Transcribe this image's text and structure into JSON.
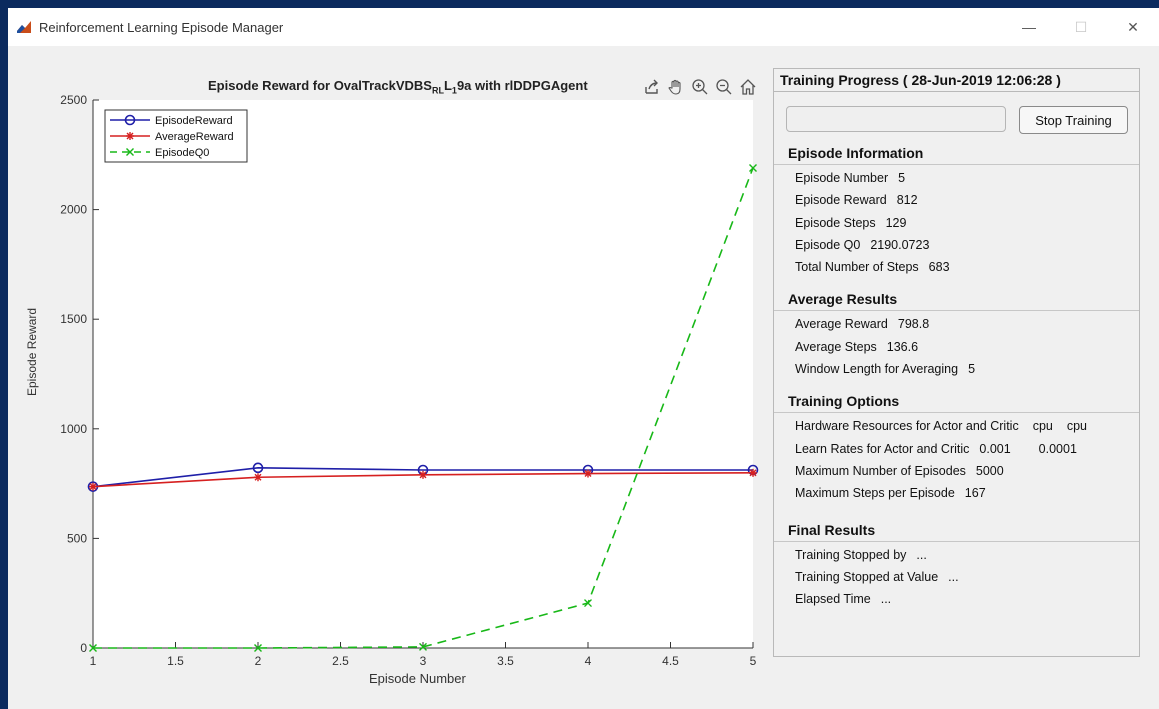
{
  "window": {
    "title": "Reinforcement Learning Episode Manager",
    "controls": {
      "minimize": "—",
      "maximize": "☐",
      "close": "✕"
    }
  },
  "plot": {
    "title_prefix": "Episode Reward for OvalTrackVDBS",
    "title_sub": "RL",
    "title_mid": "L",
    "title_sub2": "1",
    "title_suffix": "9a with rlDDPGAgent",
    "toolbar_icons": [
      "export-icon",
      "pan-hand-icon",
      "zoom-in-icon",
      "zoom-out-icon",
      "home-icon"
    ]
  },
  "chart_data": {
    "type": "line",
    "title": "Episode Reward for OvalTrackVDBSRL19a with rlDDPGAgent",
    "xlabel": "Episode Number",
    "ylabel": "Episode Reward",
    "xlim": [
      1,
      5
    ],
    "ylim": [
      0,
      2500
    ],
    "xticks": [
      "1",
      "1.5",
      "2",
      "2.5",
      "3",
      "3.5",
      "4",
      "4.5",
      "5"
    ],
    "yticks": [
      "0",
      "500",
      "1000",
      "1500",
      "2000",
      "2500"
    ],
    "legend_placement": "top-left",
    "grid": false,
    "x": [
      1,
      2,
      3,
      4,
      5
    ],
    "series": [
      {
        "name": "EpisodeReward",
        "values": [
          736,
          822,
          812,
          812,
          812
        ],
        "color": "#1f1fa8",
        "marker": "circle",
        "style": "solid"
      },
      {
        "name": "AverageReward",
        "values": [
          736,
          779,
          790,
          796,
          799
        ],
        "color": "#d62020",
        "marker": "star",
        "style": "solid"
      },
      {
        "name": "EpisodeQ0",
        "values": [
          0,
          0,
          5,
          205,
          2190
        ],
        "color": "#18b818",
        "marker": "x",
        "style": "dashed"
      }
    ]
  },
  "panel": {
    "title": "Training Progress ( 28-Jun-2019 12:06:28 )",
    "stop_button": "Stop Training",
    "sections": [
      {
        "heading": "Episode Information",
        "rows": [
          {
            "label": "Episode Number",
            "value": "5"
          },
          {
            "label": "Episode Reward",
            "value": "812"
          },
          {
            "label": "Episode Steps",
            "value": "129"
          },
          {
            "label": "Episode Q0",
            "value": "2190.0723"
          },
          {
            "label": "Total Number of Steps",
            "value": "683"
          }
        ]
      },
      {
        "heading": "Average Results",
        "rows": [
          {
            "label": "Average Reward",
            "value": "798.8"
          },
          {
            "label": "Average Steps",
            "value": "136.6"
          },
          {
            "label": "Window Length for Averaging",
            "value": "5"
          }
        ]
      },
      {
        "heading": "Training Options",
        "rows": [
          {
            "label": "Hardware Resources for Actor and Critic",
            "value": "cpu",
            "value2": "cpu"
          },
          {
            "label": "Learn Rates for Actor and Critic",
            "value": "0.001",
            "value2": "0.0001"
          },
          {
            "label": "Maximum Number of Episodes",
            "value": "5000"
          },
          {
            "label": "Maximum Steps per Episode",
            "value": "167"
          }
        ]
      },
      {
        "heading": "Final Results",
        "rows": [
          {
            "label": "Training Stopped by",
            "value": "..."
          },
          {
            "label": "Training Stopped at Value",
            "value": "..."
          },
          {
            "label": "Elapsed Time",
            "value": "..."
          }
        ]
      }
    ]
  }
}
